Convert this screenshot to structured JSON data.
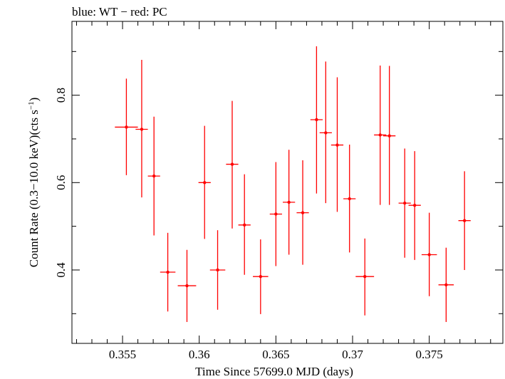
{
  "chart_data": {
    "type": "scatter",
    "title": "blue: WT − red: PC",
    "xlabel": "Time Since 57699.0 MJD (days)",
    "ylabel_main": "Count Rate (0.3−10.0 keV)(cts s",
    "ylabel_sup": "−1",
    "ylabel_end": ")",
    "xlim": [
      0.3517,
      0.3798
    ],
    "ylim": [
      0.232,
      0.969
    ],
    "xticks_major": [
      0.355,
      0.36,
      0.365,
      0.37,
      0.375
    ],
    "xtick_labels": [
      "0.355",
      "0.36",
      "0.365",
      "0.37",
      "0.375"
    ],
    "xticks_minor": [
      0.352,
      0.353,
      0.354,
      0.356,
      0.357,
      0.358,
      0.359,
      0.361,
      0.362,
      0.363,
      0.364,
      0.366,
      0.367,
      0.368,
      0.369,
      0.371,
      0.372,
      0.373,
      0.374,
      0.376,
      0.377,
      0.378,
      0.379
    ],
    "yticks_major": [
      0.4,
      0.6,
      0.8
    ],
    "ytick_labels": [
      "0.4",
      "0.6",
      "0.8"
    ],
    "yticks_minor": [
      0.3,
      0.5,
      0.7,
      0.9
    ],
    "series": [
      {
        "color": "#ff0000",
        "points": [
          {
            "x": 0.35525,
            "xerr": 0.00075,
            "y": 0.727,
            "ylo": 0.617,
            "yhi": 0.838
          },
          {
            "x": 0.35625,
            "xerr": 0.0004,
            "y": 0.722,
            "ylo": 0.566,
            "yhi": 0.881
          },
          {
            "x": 0.35705,
            "xerr": 0.0004,
            "y": 0.615,
            "ylo": 0.479,
            "yhi": 0.751
          },
          {
            "x": 0.35795,
            "xerr": 0.0005,
            "y": 0.395,
            "ylo": 0.305,
            "yhi": 0.485
          },
          {
            "x": 0.3592,
            "xerr": 0.0006,
            "y": 0.364,
            "ylo": 0.281,
            "yhi": 0.446
          },
          {
            "x": 0.36035,
            "xerr": 0.0004,
            "y": 0.6,
            "ylo": 0.471,
            "yhi": 0.73
          },
          {
            "x": 0.3612,
            "xerr": 0.0005,
            "y": 0.4,
            "ylo": 0.309,
            "yhi": 0.491
          },
          {
            "x": 0.36215,
            "xerr": 0.0004,
            "y": 0.642,
            "ylo": 0.495,
            "yhi": 0.787
          },
          {
            "x": 0.36295,
            "xerr": 0.0004,
            "y": 0.503,
            "ylo": 0.389,
            "yhi": 0.619
          },
          {
            "x": 0.364,
            "xerr": 0.0005,
            "y": 0.385,
            "ylo": 0.299,
            "yhi": 0.47
          },
          {
            "x": 0.365,
            "xerr": 0.0004,
            "y": 0.528,
            "ylo": 0.409,
            "yhi": 0.647
          },
          {
            "x": 0.36585,
            "xerr": 0.0004,
            "y": 0.555,
            "ylo": 0.435,
            "yhi": 0.675
          },
          {
            "x": 0.36675,
            "xerr": 0.0004,
            "y": 0.531,
            "ylo": 0.412,
            "yhi": 0.651
          },
          {
            "x": 0.36765,
            "xerr": 0.0004,
            "y": 0.744,
            "ylo": 0.575,
            "yhi": 0.912
          },
          {
            "x": 0.36825,
            "xerr": 0.0004,
            "y": 0.714,
            "ylo": 0.553,
            "yhi": 0.877
          },
          {
            "x": 0.369,
            "xerr": 0.0004,
            "y": 0.686,
            "ylo": 0.533,
            "yhi": 0.841
          },
          {
            "x": 0.3698,
            "xerr": 0.0004,
            "y": 0.563,
            "ylo": 0.44,
            "yhi": 0.687
          },
          {
            "x": 0.3708,
            "xerr": 0.0006,
            "y": 0.385,
            "ylo": 0.296,
            "yhi": 0.472
          },
          {
            "x": 0.3718,
            "xerr": 0.0004,
            "y": 0.709,
            "ylo": 0.549,
            "yhi": 0.868
          },
          {
            "x": 0.3724,
            "xerr": 0.0004,
            "y": 0.707,
            "ylo": 0.549,
            "yhi": 0.867
          },
          {
            "x": 0.3734,
            "xerr": 0.0004,
            "y": 0.553,
            "ylo": 0.428,
            "yhi": 0.678
          },
          {
            "x": 0.37405,
            "xerr": 0.0004,
            "y": 0.548,
            "ylo": 0.423,
            "yhi": 0.672
          },
          {
            "x": 0.375,
            "xerr": 0.0005,
            "y": 0.435,
            "ylo": 0.34,
            "yhi": 0.531
          },
          {
            "x": 0.3761,
            "xerr": 0.0005,
            "y": 0.366,
            "ylo": 0.281,
            "yhi": 0.451
          },
          {
            "x": 0.3773,
            "xerr": 0.0004,
            "y": 0.513,
            "ylo": 0.4,
            "yhi": 0.626
          }
        ]
      }
    ],
    "grid": false,
    "legend": "none"
  }
}
